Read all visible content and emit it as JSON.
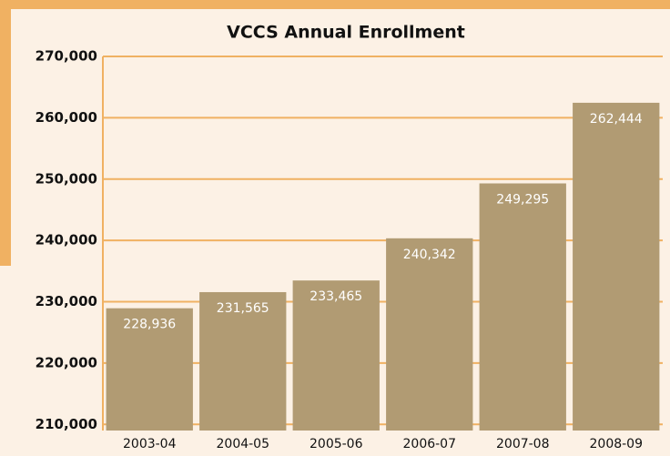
{
  "chart_data": {
    "type": "bar",
    "title": "VCCS Annual Enrollment",
    "categories": [
      "2003-04",
      "2004-05",
      "2005-06",
      "2006-07",
      "2007-08",
      "2008-09"
    ],
    "values": [
      228936,
      231565,
      233465,
      240342,
      249295,
      262444
    ],
    "value_labels": [
      "228,936",
      "231,565",
      "233,465",
      "240,342",
      "249,295",
      "262,444"
    ],
    "color": "#b19b73",
    "ylim": [
      209000,
      270000
    ],
    "yticks": [
      {
        "value": 210000,
        "label": "210,000"
      },
      {
        "value": 220000,
        "label": "220,000"
      },
      {
        "value": 230000,
        "label": "230,000"
      },
      {
        "value": 240000,
        "label": "240,000"
      },
      {
        "value": 250000,
        "label": "250,000"
      },
      {
        "value": 260000,
        "label": "260,000"
      },
      {
        "value": 270000,
        "label": "270,000"
      }
    ],
    "grid": true
  }
}
